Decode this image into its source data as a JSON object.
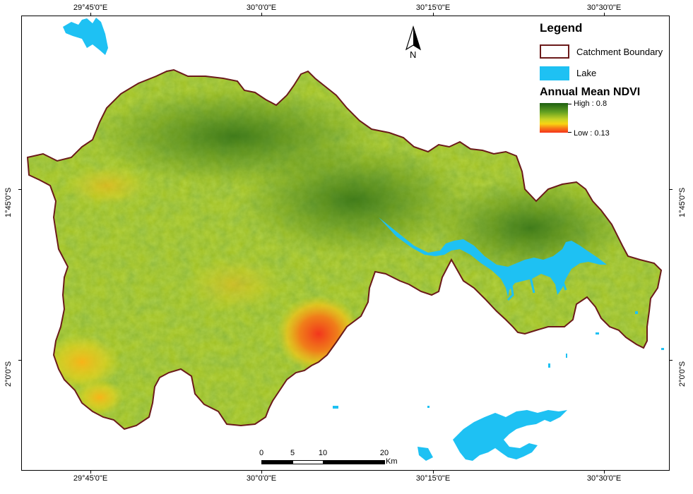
{
  "map": {
    "coords_top": [
      "29°45'0\"E",
      "30°0'0\"E",
      "30°15'0\"E",
      "30°30'0\"E"
    ],
    "coords_bottom": [
      "29°45'0\"E",
      "30°0'0\"E",
      "30°15'0\"E",
      "30°30'0\"E"
    ],
    "coords_left": [
      "1°45'0\"S",
      "2°0'0\"S"
    ],
    "coords_right": [
      "1°45'0\"S",
      "2°0'0\"S"
    ]
  },
  "legend": {
    "title": "Legend",
    "boundary_label": "Catchment Boundary",
    "lake_label": "Lake",
    "ndvi_title": "Annual Mean NDVI",
    "high_label": "High : 0.8",
    "low_label": "Low : 0.13"
  },
  "north_arrow": {
    "label": "N"
  },
  "scalebar": {
    "ticks": [
      "0",
      "5",
      "10",
      "20"
    ],
    "unit": "Km"
  },
  "colors": {
    "boundary": "#6b1a1a",
    "lake": "#1ec1f3",
    "ndvi_high": "#1d5f12",
    "ndvi_mid": "#c8d325",
    "ndvi_low": "#f4331b"
  }
}
